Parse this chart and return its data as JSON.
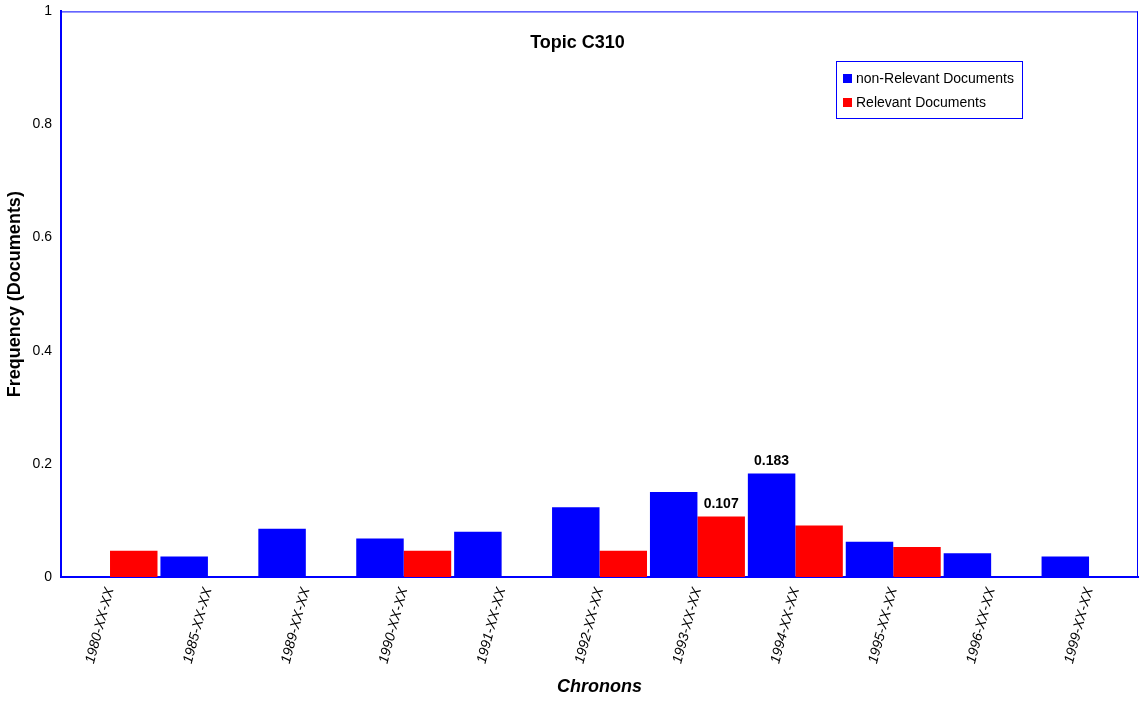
{
  "chart_data": {
    "type": "bar",
    "title": "Topic C310",
    "xlabel": "Chronons",
    "ylabel": "Frequency (Documents)",
    "categories": [
      "1980-XX-XX",
      "1985-XX-XX",
      "1989-XX-XX",
      "1990-XX-XX",
      "1991-XX-XX",
      "1992-XX-XX",
      "1993-XX-XX",
      "1994-XX-XX",
      "1995-XX-XX",
      "1996-XX-XX",
      "1999-XX-XX"
    ],
    "series": [
      {
        "name": "non-Relevant Documents",
        "color": "#0000ff",
        "values": [
          null,
          0.036,
          0.085,
          0.068,
          0.08,
          0.123,
          0.15,
          0.183,
          0.062,
          0.042,
          0.036
        ],
        "value_labels": [
          null,
          null,
          null,
          null,
          null,
          null,
          null,
          "0.183",
          null,
          null,
          null
        ]
      },
      {
        "name": "Relevant Documents",
        "color": "#ff0000",
        "values": [
          0.046,
          null,
          null,
          0.046,
          null,
          0.046,
          0.107,
          0.091,
          0.053,
          null,
          null
        ],
        "value_labels": [
          null,
          null,
          null,
          null,
          null,
          null,
          "0.107",
          null,
          null,
          null,
          null
        ]
      }
    ],
    "ylim": [
      0,
      1
    ],
    "yticks": [
      0,
      0.2,
      0.4,
      0.6,
      0.8,
      1
    ],
    "grid": false,
    "legend": "top right"
  }
}
